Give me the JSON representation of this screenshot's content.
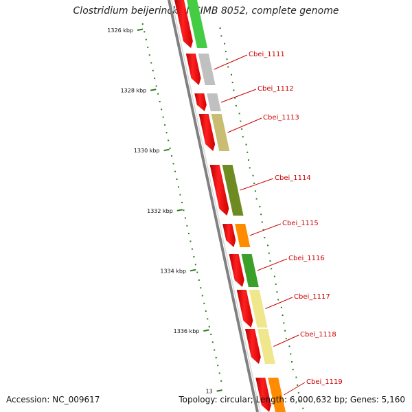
{
  "title": "Clostridium beijerinckii NCIMB 8052, complete genome",
  "footer": {
    "accession": "Accession: NC_009617",
    "stats": "Topology: circular; Length: 6,000,632 bp; Genes: 5,160"
  },
  "ruler": {
    "unit": "kbp",
    "ticks": [
      {
        "kbp": 1326,
        "label": "1326 kbp"
      },
      {
        "kbp": 1328,
        "label": "1328 kbp"
      },
      {
        "kbp": 1330,
        "label": "1330 kbp"
      },
      {
        "kbp": 1332,
        "label": "1332 kbp"
      },
      {
        "kbp": 1334,
        "label": "1334 kbp"
      },
      {
        "kbp": 1336,
        "label": "1336 kbp"
      },
      {
        "kbp": 1338,
        "label": "13"
      }
    ]
  },
  "genes": [
    {
      "name": "Cbei_1111",
      "color": "#c0c0c0"
    },
    {
      "name": "Cbei_1112",
      "color": "#c0c0c0"
    },
    {
      "name": "Cbei_1113",
      "color": "#c8bd73"
    },
    {
      "name": "Cbei_1114",
      "color": "#6e8b22"
    },
    {
      "name": "Cbei_1115",
      "color": "#ff8c00"
    },
    {
      "name": "Cbei_1116",
      "color": "#3aa02a"
    },
    {
      "name": "Cbei_1117",
      "color": "#f0e68c"
    },
    {
      "name": "Cbei_1118",
      "color": "#f0e68c"
    },
    {
      "name": "Cbei_1119",
      "color": "#ff8c00"
    }
  ],
  "colors": {
    "cds": "#ff0000",
    "backbone": "#808080",
    "tick": "#2a7a1a",
    "label": "#cc0000"
  }
}
